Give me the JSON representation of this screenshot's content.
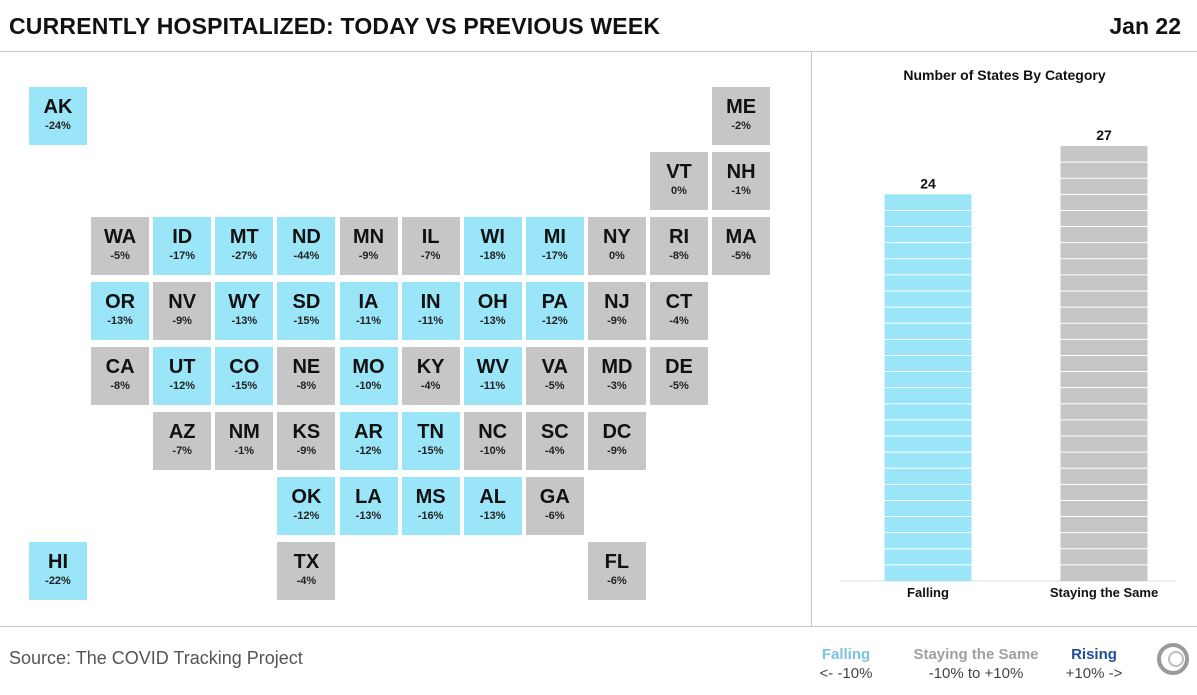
{
  "header": {
    "title": "CURRENTLY HOSPITALIZED: TODAY VS PREVIOUS WEEK",
    "date": "Jan 22"
  },
  "colors": {
    "falling": "#9be5f8",
    "same": "#c6c6c6",
    "rising": "#1f4e9a"
  },
  "tiles": [
    {
      "state": "AK",
      "pct": "-24%",
      "cat": "falling",
      "col": 0,
      "row": 0
    },
    {
      "state": "ME",
      "pct": "-2%",
      "cat": "same",
      "col": 11,
      "row": 0
    },
    {
      "state": "VT",
      "pct": "0%",
      "cat": "same",
      "col": 10,
      "row": 1
    },
    {
      "state": "NH",
      "pct": "-1%",
      "cat": "same",
      "col": 11,
      "row": 1
    },
    {
      "state": "WA",
      "pct": "-5%",
      "cat": "same",
      "col": 1,
      "row": 2
    },
    {
      "state": "ID",
      "pct": "-17%",
      "cat": "falling",
      "col": 2,
      "row": 2
    },
    {
      "state": "MT",
      "pct": "-27%",
      "cat": "falling",
      "col": 3,
      "row": 2
    },
    {
      "state": "ND",
      "pct": "-44%",
      "cat": "falling",
      "col": 4,
      "row": 2
    },
    {
      "state": "MN",
      "pct": "-9%",
      "cat": "same",
      "col": 5,
      "row": 2
    },
    {
      "state": "IL",
      "pct": "-7%",
      "cat": "same",
      "col": 6,
      "row": 2
    },
    {
      "state": "WI",
      "pct": "-18%",
      "cat": "falling",
      "col": 7,
      "row": 2
    },
    {
      "state": "MI",
      "pct": "-17%",
      "cat": "falling",
      "col": 8,
      "row": 2
    },
    {
      "state": "NY",
      "pct": "0%",
      "cat": "same",
      "col": 9,
      "row": 2
    },
    {
      "state": "RI",
      "pct": "-8%",
      "cat": "same",
      "col": 10,
      "row": 2
    },
    {
      "state": "MA",
      "pct": "-5%",
      "cat": "same",
      "col": 11,
      "row": 2
    },
    {
      "state": "OR",
      "pct": "-13%",
      "cat": "falling",
      "col": 1,
      "row": 3
    },
    {
      "state": "NV",
      "pct": "-9%",
      "cat": "same",
      "col": 2,
      "row": 3
    },
    {
      "state": "WY",
      "pct": "-13%",
      "cat": "falling",
      "col": 3,
      "row": 3
    },
    {
      "state": "SD",
      "pct": "-15%",
      "cat": "falling",
      "col": 4,
      "row": 3
    },
    {
      "state": "IA",
      "pct": "-11%",
      "cat": "falling",
      "col": 5,
      "row": 3
    },
    {
      "state": "IN",
      "pct": "-11%",
      "cat": "falling",
      "col": 6,
      "row": 3
    },
    {
      "state": "OH",
      "pct": "-13%",
      "cat": "falling",
      "col": 7,
      "row": 3
    },
    {
      "state": "PA",
      "pct": "-12%",
      "cat": "falling",
      "col": 8,
      "row": 3
    },
    {
      "state": "NJ",
      "pct": "-9%",
      "cat": "same",
      "col": 9,
      "row": 3
    },
    {
      "state": "CT",
      "pct": "-4%",
      "cat": "same",
      "col": 10,
      "row": 3
    },
    {
      "state": "CA",
      "pct": "-8%",
      "cat": "same",
      "col": 1,
      "row": 4
    },
    {
      "state": "UT",
      "pct": "-12%",
      "cat": "falling",
      "col": 2,
      "row": 4
    },
    {
      "state": "CO",
      "pct": "-15%",
      "cat": "falling",
      "col": 3,
      "row": 4
    },
    {
      "state": "NE",
      "pct": "-8%",
      "cat": "same",
      "col": 4,
      "row": 4
    },
    {
      "state": "MO",
      "pct": "-10%",
      "cat": "falling",
      "col": 5,
      "row": 4
    },
    {
      "state": "KY",
      "pct": "-4%",
      "cat": "same",
      "col": 6,
      "row": 4
    },
    {
      "state": "WV",
      "pct": "-11%",
      "cat": "falling",
      "col": 7,
      "row": 4
    },
    {
      "state": "VA",
      "pct": "-5%",
      "cat": "same",
      "col": 8,
      "row": 4
    },
    {
      "state": "MD",
      "pct": "-3%",
      "cat": "same",
      "col": 9,
      "row": 4
    },
    {
      "state": "DE",
      "pct": "-5%",
      "cat": "same",
      "col": 10,
      "row": 4
    },
    {
      "state": "AZ",
      "pct": "-7%",
      "cat": "same",
      "col": 2,
      "row": 5
    },
    {
      "state": "NM",
      "pct": "-1%",
      "cat": "same",
      "col": 3,
      "row": 5
    },
    {
      "state": "KS",
      "pct": "-9%",
      "cat": "same",
      "col": 4,
      "row": 5
    },
    {
      "state": "AR",
      "pct": "-12%",
      "cat": "falling",
      "col": 5,
      "row": 5
    },
    {
      "state": "TN",
      "pct": "-15%",
      "cat": "falling",
      "col": 6,
      "row": 5
    },
    {
      "state": "NC",
      "pct": "-10%",
      "cat": "same",
      "col": 7,
      "row": 5
    },
    {
      "state": "SC",
      "pct": "-4%",
      "cat": "same",
      "col": 8,
      "row": 5
    },
    {
      "state": "DC",
      "pct": "-9%",
      "cat": "same",
      "col": 9,
      "row": 5
    },
    {
      "state": "OK",
      "pct": "-12%",
      "cat": "falling",
      "col": 4,
      "row": 6
    },
    {
      "state": "LA",
      "pct": "-13%",
      "cat": "falling",
      "col": 5,
      "row": 6
    },
    {
      "state": "MS",
      "pct": "-16%",
      "cat": "falling",
      "col": 6,
      "row": 6
    },
    {
      "state": "AL",
      "pct": "-13%",
      "cat": "falling",
      "col": 7,
      "row": 6
    },
    {
      "state": "GA",
      "pct": "-6%",
      "cat": "same",
      "col": 8,
      "row": 6
    },
    {
      "state": "HI",
      "pct": "-22%",
      "cat": "falling",
      "col": 0,
      "row": 7
    },
    {
      "state": "TX",
      "pct": "-4%",
      "cat": "same",
      "col": 4,
      "row": 7
    },
    {
      "state": "FL",
      "pct": "-6%",
      "cat": "same",
      "col": 9,
      "row": 7
    }
  ],
  "chart_data": {
    "type": "bar",
    "title": "Number of States By Category",
    "categories": [
      "Falling",
      "Staying the Same"
    ],
    "values": [
      24,
      27
    ],
    "colors": [
      "#9be5f8",
      "#c6c6c6"
    ],
    "ylim": [
      0,
      27
    ],
    "grid": false
  },
  "footer": {
    "source": "Source: The COVID Tracking Project",
    "legend": {
      "falling_name": "Falling",
      "falling_range": "<-  -10%",
      "same_name": "Staying the Same",
      "same_range": "-10% to +10%",
      "rising_name": "Rising",
      "rising_range": "+10%  ->"
    },
    "logo_icon": "covid-tracking-project-logo-icon"
  }
}
